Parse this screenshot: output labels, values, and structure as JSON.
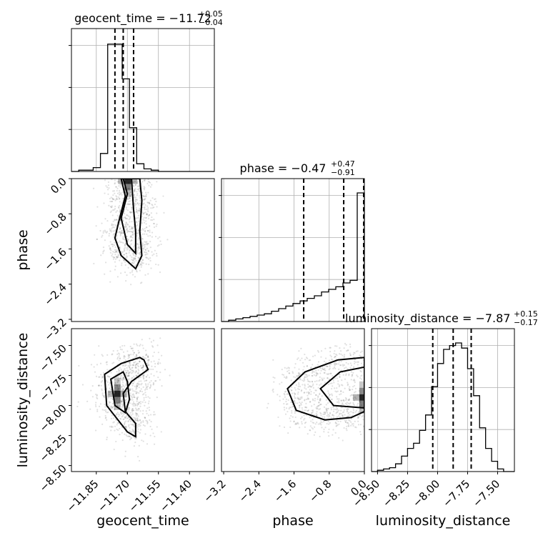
{
  "chart_data": {
    "type": "corner",
    "parameters": [
      "geocent_time",
      "phase",
      "luminosity_distance"
    ],
    "axis_labels": {
      "geocent_time": "geocent_time",
      "phase": "phase",
      "luminosity_distance": "luminosity_distance"
    },
    "ranges": {
      "geocent_time": [
        -11.97,
        -11.28
      ],
      "phase": [
        -3.25,
        0.0
      ],
      "luminosity_distance": [
        -8.55,
        -7.36
      ]
    },
    "ticks": {
      "geocent_time": [
        -11.85,
        -11.7,
        -11.55,
        -11.4
      ],
      "phase": [
        -3.2,
        -2.4,
        -1.6,
        -0.8,
        0.0
      ],
      "luminosity_distance": [
        -8.5,
        -8.25,
        -8.0,
        -7.75,
        -7.5
      ]
    },
    "tick_labels": {
      "geocent_time": [
        "−11.85",
        "−11.70",
        "−11.55",
        "−11.40"
      ],
      "phase": [
        "−3.2",
        "−2.4",
        "−1.6",
        "−0.8",
        "0.0"
      ],
      "luminosity_distance": [
        "−8.50",
        "−8.25",
        "−8.00",
        "−7.75",
        "−7.50"
      ]
    },
    "titles": {
      "geocent_time": {
        "main": "geocent_time = −11.72",
        "plus": "+0.05",
        "minus": "−0.04"
      },
      "phase": {
        "main": "phase = −0.47",
        "plus": "+0.47",
        "minus": "−0.91"
      },
      "luminosity_distance": {
        "main": "luminosity_distance = −7.87",
        "plus": "+0.15",
        "minus": "−0.17"
      }
    },
    "marginals": {
      "geocent_time": {
        "bin_edges": [
          -11.97,
          -11.935,
          -11.9,
          -11.865,
          -11.83,
          -11.795,
          -11.76,
          -11.725,
          -11.69,
          -11.655,
          -11.62,
          -11.585,
          -11.55,
          -11.515,
          -11.48,
          -11.445,
          -11.41,
          -11.375,
          -11.34,
          -11.305,
          -11.28
        ],
        "counts": [
          0.0,
          0.01,
          0.01,
          0.03,
          0.14,
          0.99,
          0.99,
          0.72,
          0.34,
          0.06,
          0.02,
          0.01,
          0.0,
          0.0,
          0.0,
          0.0,
          0.0,
          0.0,
          0.0,
          0.0
        ],
        "quantiles": [
          -11.76,
          -11.72,
          -11.67
        ]
      },
      "phase": {
        "bin_edges": [
          -3.25,
          -3.0875,
          -2.925,
          -2.7625,
          -2.6,
          -2.4375,
          -2.275,
          -2.1125,
          -1.95,
          -1.7875,
          -1.625,
          -1.4625,
          -1.3,
          -1.1375,
          -0.975,
          -0.8125,
          -0.65,
          -0.4875,
          -0.325,
          -0.1625,
          0.0
        ],
        "counts": [
          0.0,
          0.01,
          0.02,
          0.03,
          0.04,
          0.05,
          0.06,
          0.08,
          0.1,
          0.12,
          0.14,
          0.16,
          0.18,
          0.2,
          0.23,
          0.25,
          0.27,
          0.3,
          0.32,
          1.0
        ],
        "quantiles": [
          -1.38,
          -0.47,
          0.0
        ]
      },
      "luminosity_distance": {
        "bin_edges": [
          -8.55,
          -8.5,
          -8.45,
          -8.4,
          -8.35,
          -8.3,
          -8.25,
          -8.2,
          -8.15,
          -8.1,
          -8.05,
          -8.0,
          -7.95,
          -7.9,
          -7.85,
          -7.8,
          -7.75,
          -7.7,
          -7.65,
          -7.6,
          -7.55,
          -7.5,
          -7.45,
          -7.4,
          -7.36
        ],
        "counts": [
          0.0,
          0.01,
          0.02,
          0.03,
          0.06,
          0.12,
          0.18,
          0.22,
          0.32,
          0.44,
          0.66,
          0.84,
          0.95,
          0.98,
          1.0,
          0.96,
          0.8,
          0.59,
          0.34,
          0.18,
          0.08,
          0.02,
          0.0,
          0.0
        ],
        "quantiles": [
          -8.04,
          -7.87,
          -7.72
        ]
      }
    },
    "joint": {
      "geocent_time_vs_phase": {
        "peak": [
          -11.7,
          -0.04
        ],
        "contour_outer": [
          [
            -11.73,
            0.0
          ],
          [
            -11.71,
            -0.4
          ],
          [
            -11.74,
            -0.95
          ],
          [
            -11.76,
            -1.35
          ],
          [
            -11.73,
            -1.75
          ],
          [
            -11.66,
            -2.05
          ],
          [
            -11.63,
            -1.75
          ],
          [
            -11.64,
            -1.2
          ],
          [
            -11.63,
            -0.5
          ],
          [
            -11.64,
            0.0
          ]
        ],
        "contour_inner": [
          [
            -11.72,
            0.0
          ],
          [
            -11.7,
            -0.35
          ],
          [
            -11.73,
            -0.9
          ],
          [
            -11.7,
            -1.5
          ],
          [
            -11.66,
            -1.7
          ],
          [
            -11.66,
            -1.2
          ],
          [
            -11.67,
            -0.7
          ],
          [
            -11.68,
            0.0
          ]
        ]
      },
      "geocent_time_vs_luminosity_distance": {
        "peak": [
          -11.75,
          -7.9
        ],
        "contour_outer": [
          [
            -11.64,
            -7.6
          ],
          [
            -11.73,
            -7.65
          ],
          [
            -11.81,
            -7.74
          ],
          [
            -11.8,
            -8.0
          ],
          [
            -11.7,
            -8.22
          ],
          [
            -11.66,
            -8.26
          ],
          [
            -11.66,
            -8.15
          ],
          [
            -11.71,
            -8.05
          ],
          [
            -11.72,
            -7.9
          ],
          [
            -11.68,
            -7.8
          ],
          [
            -11.6,
            -7.7
          ],
          [
            -11.62,
            -7.62
          ]
        ],
        "contour_inner": [
          [
            -11.72,
            -7.72
          ],
          [
            -11.78,
            -7.78
          ],
          [
            -11.76,
            -8.0
          ],
          [
            -11.71,
            -8.06
          ],
          [
            -11.69,
            -7.95
          ],
          [
            -11.7,
            -7.8
          ]
        ]
      },
      "phase_vs_luminosity_distance": {
        "peak": [
          -0.05,
          -7.93
        ],
        "contour_outer": [
          [
            0.0,
            -7.6
          ],
          [
            -0.6,
            -7.62
          ],
          [
            -1.35,
            -7.72
          ],
          [
            -1.75,
            -7.86
          ],
          [
            -1.55,
            -8.04
          ],
          [
            -0.9,
            -8.12
          ],
          [
            -0.3,
            -8.1
          ],
          [
            0.0,
            -8.05
          ]
        ],
        "contour_inner": [
          [
            0.0,
            -7.68
          ],
          [
            -0.55,
            -7.72
          ],
          [
            -1.0,
            -7.86
          ],
          [
            -0.7,
            -8.0
          ],
          [
            0.0,
            -8.02
          ]
        ]
      }
    }
  }
}
